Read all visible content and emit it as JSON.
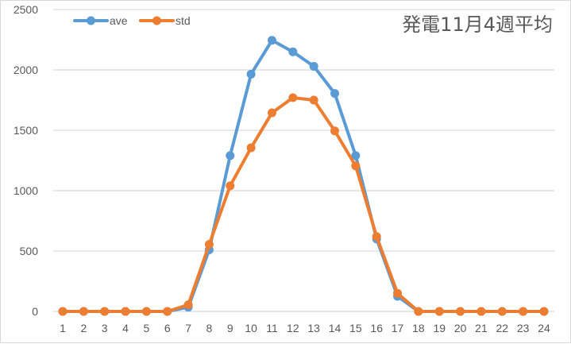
{
  "chart_data": {
    "type": "line",
    "title": "発電11月4週平均",
    "xlabel": "",
    "ylabel": "",
    "categories": [
      "1",
      "2",
      "3",
      "4",
      "5",
      "6",
      "7",
      "8",
      "9",
      "10",
      "11",
      "12",
      "13",
      "14",
      "15",
      "16",
      "17",
      "18",
      "19",
      "20",
      "21",
      "22",
      "23",
      "24"
    ],
    "series": [
      {
        "name": "ave",
        "color": "#5b9bd5",
        "values": [
          0,
          0,
          0,
          0,
          0,
          0,
          35,
          510,
          1290,
          1965,
          2245,
          2150,
          2030,
          1805,
          1290,
          600,
          125,
          0,
          0,
          0,
          0,
          0,
          0,
          0
        ]
      },
      {
        "name": "std",
        "color": "#ed7d31",
        "values": [
          0,
          0,
          0,
          0,
          0,
          0,
          55,
          555,
          1040,
          1355,
          1645,
          1770,
          1750,
          1495,
          1205,
          620,
          150,
          0,
          0,
          0,
          0,
          0,
          0,
          0
        ]
      }
    ],
    "ylim": [
      0,
      2500
    ],
    "yticks": [
      0,
      500,
      1000,
      1500,
      2000,
      2500
    ],
    "grid": true,
    "legend_position": "top-left"
  }
}
